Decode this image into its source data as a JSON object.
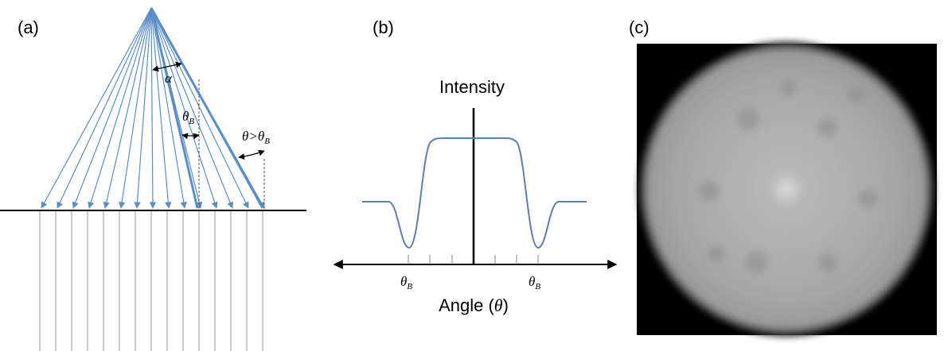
{
  "panels": {
    "a": {
      "label": "(a)",
      "alpha": "α",
      "theta_b": {
        "symbol": "θ",
        "subscript": "B"
      },
      "theta_gt": {
        "symbol": "θ>θ",
        "subscript": "B"
      }
    },
    "b": {
      "label": "(b)",
      "y_label": "Intensity",
      "x_label": {
        "text": "Angle (",
        "symbol": "θ",
        "close": ")"
      },
      "tick_left": {
        "symbol": "θ",
        "subscript": "B"
      },
      "tick_right": {
        "symbol": "θ",
        "subscript": "B"
      }
    },
    "c": {
      "label": "(c)"
    }
  }
}
